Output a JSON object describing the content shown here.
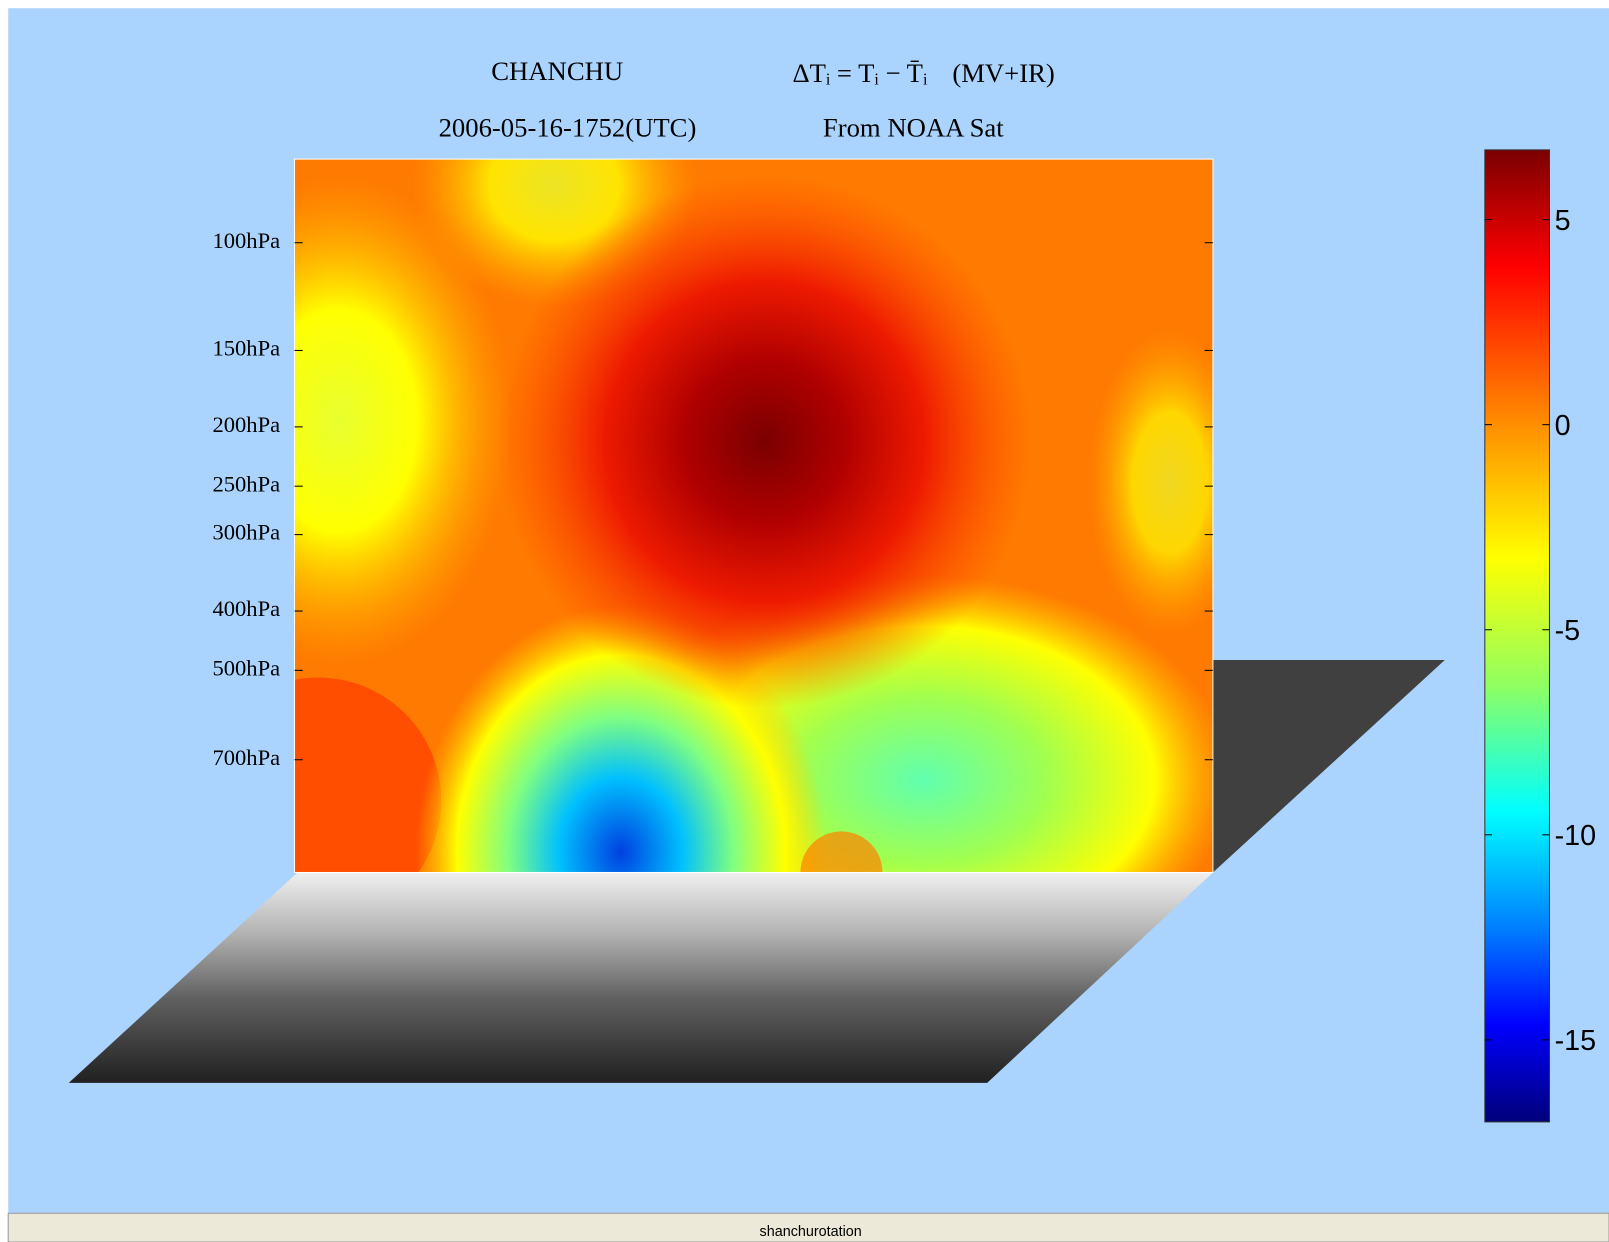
{
  "header": {
    "name": "CHANCHU",
    "formula": "ΔTᵢ = Tᵢ − T̄ᵢ",
    "method": "(MV+IR)",
    "datetime": "2006-05-16-1752(UTC)",
    "source": "From NOAA Sat"
  },
  "pressure_axis": {
    "scale": "log",
    "lim": [
      73,
      1070
    ],
    "ticks": [
      {
        "value": 100,
        "label": "100hPa"
      },
      {
        "value": 150,
        "label": "150hPa"
      },
      {
        "value": 200,
        "label": "200hPa"
      },
      {
        "value": 250,
        "label": "250hPa"
      },
      {
        "value": 300,
        "label": "300hPa"
      },
      {
        "value": 400,
        "label": "400hPa"
      },
      {
        "value": 500,
        "label": "500hPa"
      },
      {
        "value": 700,
        "label": "700hPa"
      }
    ]
  },
  "colorbar": {
    "lim": [
      -17,
      6.7
    ],
    "ticks": [
      5,
      0,
      -5,
      -10,
      -15
    ]
  },
  "status_bar": {
    "text": "shanchurotation"
  }
}
